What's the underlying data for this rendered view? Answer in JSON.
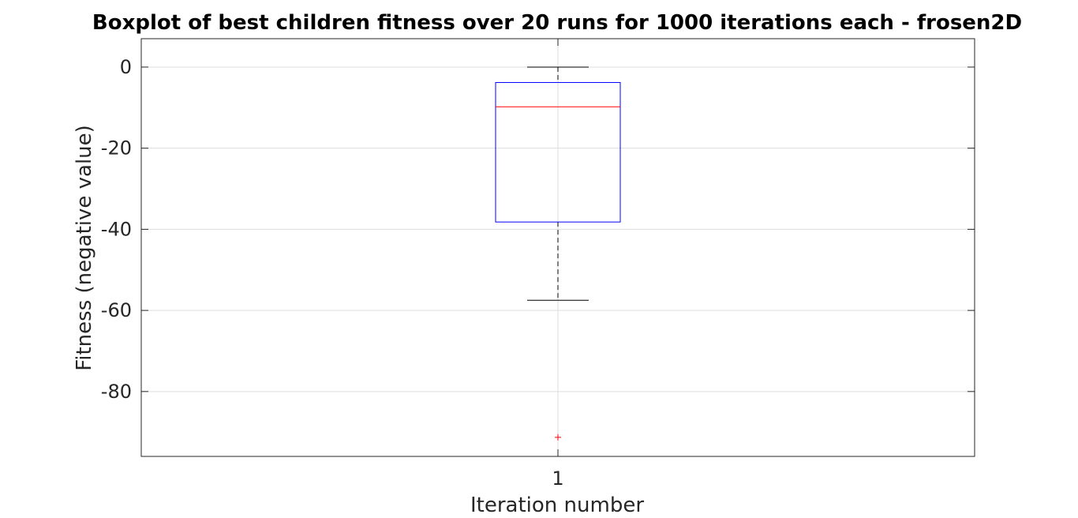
{
  "chart_data": {
    "type": "boxplot",
    "title": "Boxplot of best children fitness over 20 runs for 1000 iterations each - frosen2D",
    "xlabel": "Iteration number",
    "ylabel": "Fitness (negative value)",
    "categories": [
      "1"
    ],
    "ylim": [
      -96,
      7
    ],
    "yticks": [
      0,
      -20,
      -40,
      -60,
      -80
    ],
    "ytick_labels": [
      "0",
      "-20",
      "-40",
      "-60",
      "-80"
    ],
    "grid": true,
    "boxes": [
      {
        "category": "1",
        "whisker_high": 0,
        "q3": -3.8,
        "median": -9.8,
        "q1": -38.2,
        "whisker_low": -57.5,
        "outliers": [
          -91.3
        ]
      }
    ],
    "colors": {
      "box": "#0000ff",
      "median": "#ff0000",
      "whisker": "#000000",
      "outlier": "#ff0000",
      "grid": "#dddddd",
      "axis": "#262626"
    }
  }
}
